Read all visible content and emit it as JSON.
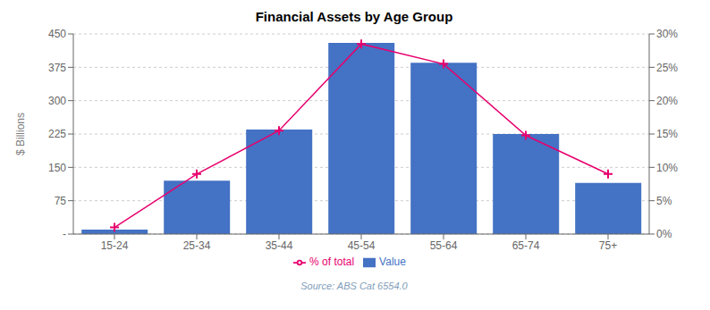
{
  "chart_data": {
    "type": "bar",
    "title": "Financial Assets by Age Group",
    "categories": [
      "15-24",
      "25-34",
      "35-44",
      "45-54",
      "55-64",
      "65-74",
      "75+"
    ],
    "series": [
      {
        "name": "Value",
        "type": "bar",
        "color": "#4472C4",
        "axis": "y",
        "values": [
          10,
          120,
          235,
          430,
          385,
          225,
          115
        ]
      },
      {
        "name": "% of total",
        "type": "line",
        "color": "#E8006E",
        "axis": "y2",
        "marker": "plus",
        "line_style": "solid",
        "values": [
          0.01,
          0.09,
          0.155,
          0.285,
          0.255,
          0.148,
          0.09
        ]
      }
    ],
    "ylabel": "$ Billions",
    "ylim": [
      0,
      450
    ],
    "yticks": [
      {
        "value": 0,
        "label": "-"
      },
      75,
      150,
      225,
      300,
      375,
      450
    ],
    "y2lim": [
      0,
      0.3
    ],
    "y2ticks": [
      {
        "value": 0.0,
        "label": "0%"
      },
      {
        "value": 0.05,
        "label": "5%"
      },
      {
        "value": 0.1,
        "label": "10%"
      },
      {
        "value": 0.15,
        "label": "15%"
      },
      {
        "value": 0.2,
        "label": "20%"
      },
      {
        "value": 0.25,
        "label": "25%"
      },
      {
        "value": 0.3,
        "label": "30%"
      }
    ],
    "grid": true,
    "legend": "bottom",
    "annotations": [
      {
        "text": "Source: ABS Cat 6554.0",
        "color": "#7F9DB9"
      }
    ]
  }
}
